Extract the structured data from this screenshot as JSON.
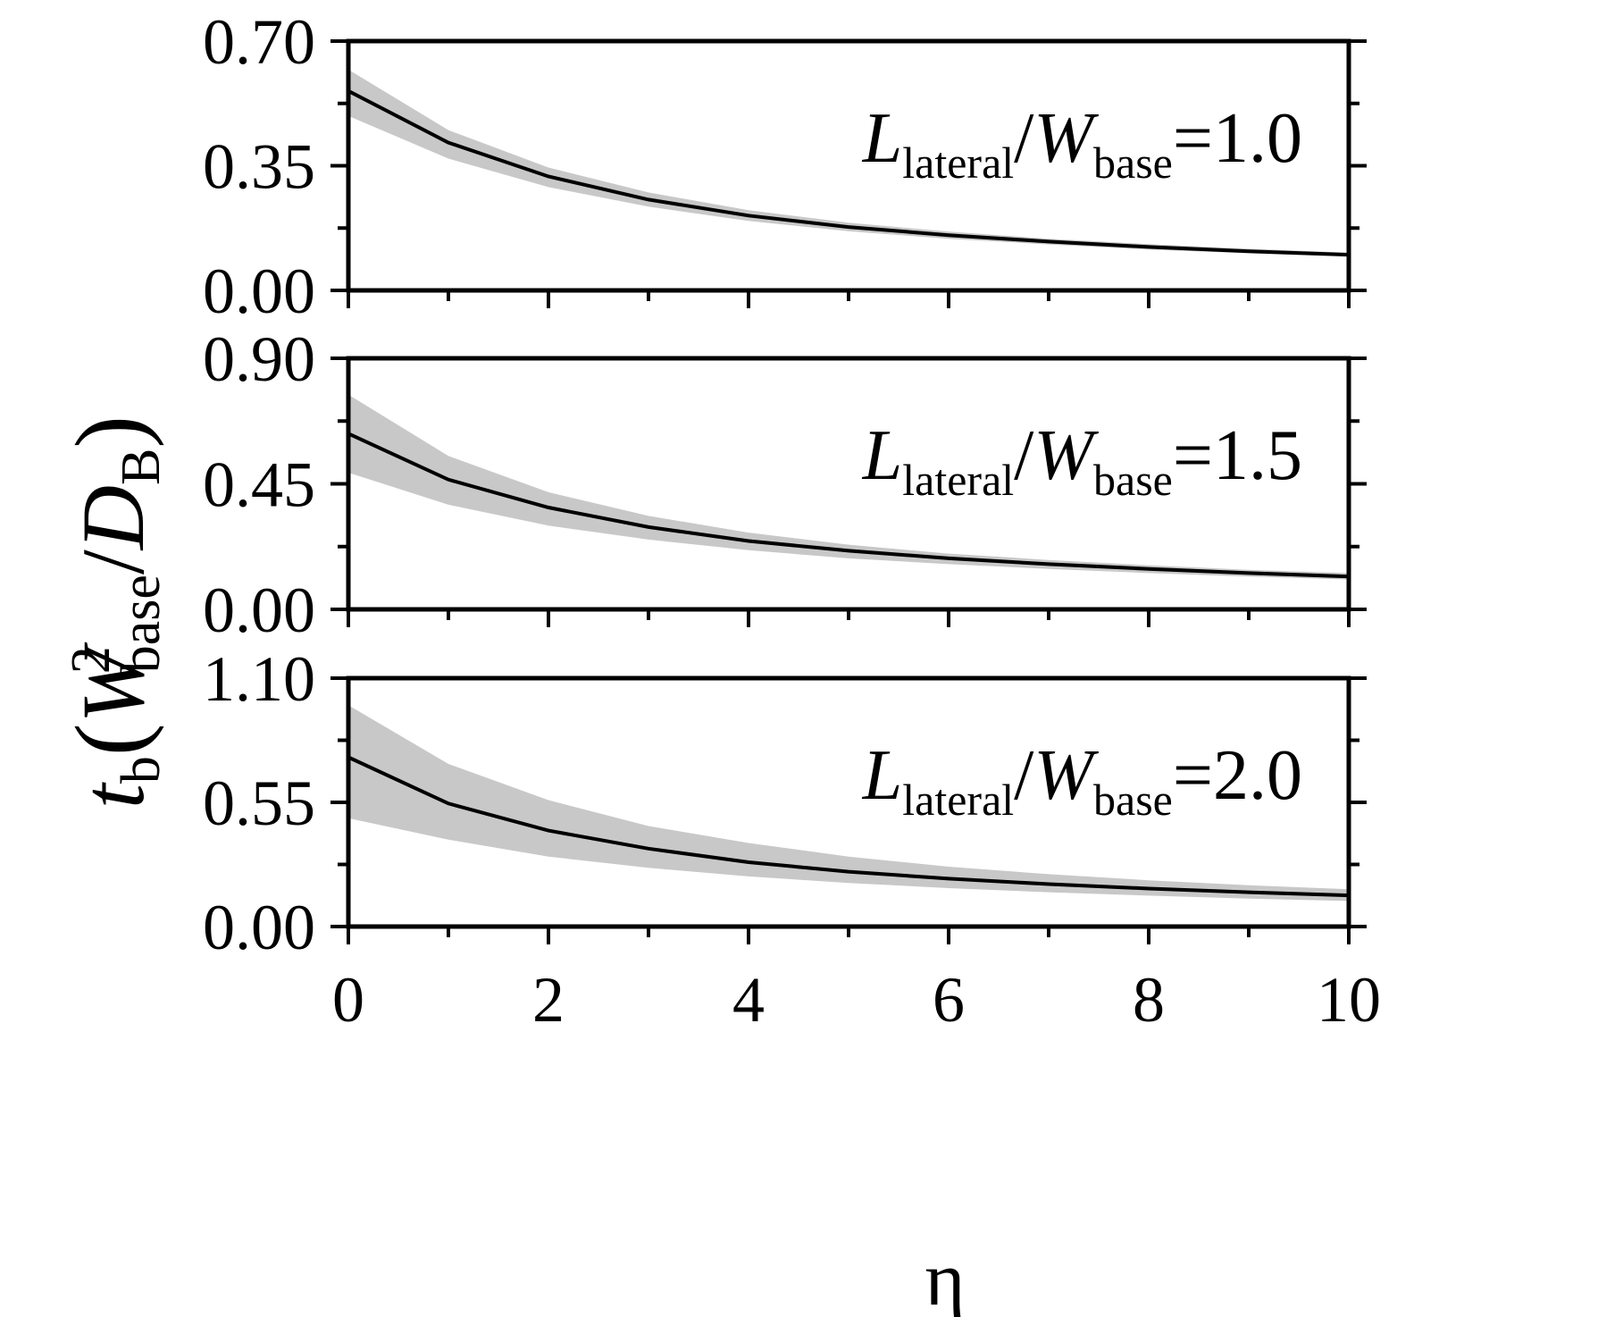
{
  "chart_data": [
    {
      "type": "line",
      "annotation": {
        "main_symbol": "L",
        "main_sub": "lateral",
        "denom_symbol": "W",
        "denom_sub": "base",
        "value": "=1.0"
      },
      "ylim": [
        0,
        0.7
      ],
      "yticks": [
        "0.00",
        "0.35",
        "0.70"
      ],
      "x": [
        0,
        1,
        2,
        3,
        4,
        5,
        6,
        7,
        8,
        9,
        10
      ],
      "series": [
        {
          "values": [
            0.56,
            0.415,
            0.32,
            0.255,
            0.21,
            0.178,
            0.155,
            0.137,
            0.122,
            0.11,
            0.1
          ]
        },
        {
          "band_upper": [
            0.62,
            0.45,
            0.345,
            0.275,
            0.225,
            0.19,
            0.165,
            0.145,
            0.13,
            0.117,
            0.106
          ],
          "band_lower": [
            0.49,
            0.37,
            0.29,
            0.235,
            0.195,
            0.166,
            0.145,
            0.129,
            0.115,
            0.104,
            0.095
          ]
        }
      ]
    },
    {
      "type": "line",
      "annotation": {
        "main_symbol": "L",
        "main_sub": "lateral",
        "denom_symbol": "W",
        "denom_sub": "base",
        "value": "=1.5"
      },
      "ylim": [
        0,
        0.9
      ],
      "yticks": [
        "0.00",
        "0.45",
        "0.90"
      ],
      "x": [
        0,
        1,
        2,
        3,
        4,
        5,
        6,
        7,
        8,
        9,
        10
      ],
      "series": [
        {
          "values": [
            0.63,
            0.465,
            0.365,
            0.295,
            0.245,
            0.21,
            0.183,
            0.162,
            0.145,
            0.13,
            0.118
          ]
        },
        {
          "band_upper": [
            0.77,
            0.55,
            0.42,
            0.335,
            0.275,
            0.232,
            0.2,
            0.177,
            0.158,
            0.142,
            0.13
          ],
          "band_lower": [
            0.49,
            0.375,
            0.3,
            0.25,
            0.212,
            0.183,
            0.162,
            0.145,
            0.13,
            0.118,
            0.107
          ]
        }
      ]
    },
    {
      "type": "line",
      "annotation": {
        "main_symbol": "L",
        "main_sub": "lateral",
        "denom_symbol": "W",
        "denom_sub": "base",
        "value": "=2.0"
      },
      "ylim": [
        0,
        1.1
      ],
      "yticks": [
        "0.00",
        "0.55",
        "1.10"
      ],
      "x": [
        0,
        1,
        2,
        3,
        4,
        5,
        6,
        7,
        8,
        9,
        10
      ],
      "series": [
        {
          "values": [
            0.75,
            0.545,
            0.425,
            0.345,
            0.285,
            0.243,
            0.212,
            0.188,
            0.168,
            0.152,
            0.138
          ]
        },
        {
          "band_upper": [
            0.98,
            0.72,
            0.56,
            0.445,
            0.37,
            0.31,
            0.265,
            0.232,
            0.205,
            0.183,
            0.165
          ],
          "band_lower": [
            0.48,
            0.385,
            0.31,
            0.26,
            0.222,
            0.193,
            0.17,
            0.152,
            0.137,
            0.124,
            0.113
          ]
        }
      ]
    }
  ],
  "x_axis": {
    "ticks": [
      "0",
      "2",
      "4",
      "6",
      "8",
      "10"
    ],
    "xlim": [
      0,
      10
    ],
    "label": "η"
  },
  "y_axis": {
    "label_main": "t",
    "label_sub_b": "b",
    "label_paren_open": "(",
    "label_W": "W",
    "label_sup2": "2",
    "label_sub_base": "base",
    "label_slash": "/",
    "label_D": "D",
    "label_sub_B": "B",
    "label_paren_close": ")"
  },
  "colors": {
    "line": "#000000",
    "band": "#c8c8c8",
    "axis": "#000000"
  }
}
